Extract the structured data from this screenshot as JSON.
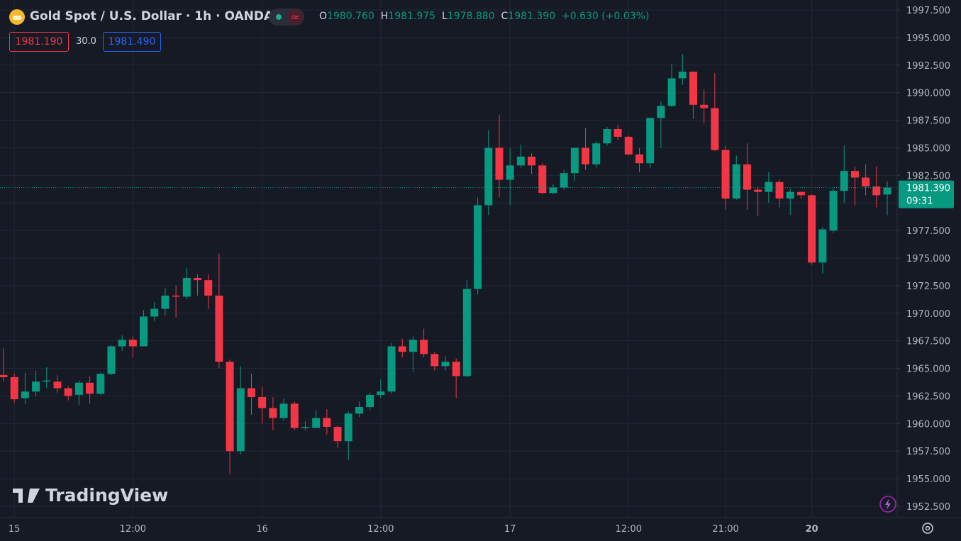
{
  "chart_data": {
    "type": "candlestick",
    "title": "Gold Spot / U.S. Dollar · 1h · OANDA",
    "legend": {
      "o_key": "O",
      "o": "1980.760",
      "h_key": "H",
      "h": "1981.975",
      "l_key": "L",
      "l": "1978.880",
      "c_key": "C",
      "c": "1981.390",
      "change": "+0.630 (+0.03%)"
    },
    "bid": "1981.190",
    "spread": "30.0",
    "ask": "1981.490",
    "last_price_label": "1981.390",
    "countdown": "09:31",
    "watermark": "TradingView",
    "up_color": "#089981",
    "down_color": "#f23645",
    "grid": true,
    "ylim": [
      1951.47,
      1998.4
    ],
    "yticks": [
      {
        "value": 1952.5,
        "label": "1952.500"
      },
      {
        "value": 1955,
        "label": "1955.000"
      },
      {
        "value": 1957.5,
        "label": "1957.500"
      },
      {
        "value": 1960,
        "label": "1960.000"
      },
      {
        "value": 1962.5,
        "label": "1962.500"
      },
      {
        "value": 1965,
        "label": "1965.000"
      },
      {
        "value": 1967.5,
        "label": "1967.500"
      },
      {
        "value": 1970,
        "label": "1970.000"
      },
      {
        "value": 1972.5,
        "label": "1972.500"
      },
      {
        "value": 1975,
        "label": "1975.000"
      },
      {
        "value": 1977.5,
        "label": "1977.500"
      },
      {
        "value": 1980,
        "label": "1980.000"
      },
      {
        "value": 1982.5,
        "label": "1982.500"
      },
      {
        "value": 1985,
        "label": "1985.000"
      },
      {
        "value": 1987.5,
        "label": "1987.500"
      },
      {
        "value": 1990,
        "label": "1990.000"
      },
      {
        "value": 1992.5,
        "label": "1992.500"
      },
      {
        "value": 1995,
        "label": "1995.000"
      },
      {
        "value": 1997.5,
        "label": "1997.500"
      }
    ],
    "categories": [
      null,
      "15",
      null,
      null,
      null,
      null,
      null,
      null,
      null,
      null,
      null,
      null,
      "12:00",
      null,
      null,
      null,
      null,
      null,
      null,
      null,
      null,
      null,
      null,
      null,
      "16",
      null,
      null,
      null,
      null,
      null,
      null,
      null,
      null,
      null,
      null,
      "12:00",
      null,
      null,
      null,
      null,
      null,
      null,
      null,
      null,
      null,
      null,
      null,
      "17",
      null,
      null,
      null,
      null,
      null,
      null,
      null,
      null,
      null,
      null,
      "12:00",
      null,
      null,
      null,
      null,
      null,
      null,
      null,
      null,
      "21:00",
      null,
      null,
      null,
      null,
      null,
      null,
      null,
      "20",
      null,
      null,
      null,
      null,
      null,
      null,
      null
    ],
    "open": [
      1964.4,
      1964.2,
      1962.3,
      1962.9,
      1963.8,
      1963.8,
      1963.2,
      1962.6,
      1963.7,
      1962.7,
      1964.5,
      1967.0,
      1967.6,
      1967.0,
      1969.7,
      1970.4,
      1971.6,
      1971.5,
      1973.2,
      1973.0,
      1971.6,
      1965.6,
      1957.5,
      1963.2,
      1962.4,
      1961.4,
      1960.5,
      1961.8,
      1959.6,
      1959.6,
      1960.5,
      1959.7,
      1958.4,
      1960.9,
      1961.5,
      1962.6,
      1962.9,
      1967.0,
      1966.5,
      1967.6,
      1966.3,
      1965.2,
      1965.6,
      1964.3,
      1972.2,
      1979.8,
      1985.0,
      1982.1,
      1983.4,
      1984.2,
      1983.4,
      1980.9,
      1981.4,
      1982.7,
      1985.0,
      1983.5,
      1985.4,
      1986.7,
      1986.0,
      1984.4,
      1983.6,
      1987.7,
      1988.8,
      1991.3,
      1991.9,
      1988.9,
      1988.6,
      1984.8,
      1980.4,
      1983.5,
      1981.2,
      1981.0,
      1981.9,
      1980.4,
      1981.0,
      1980.7,
      1974.6,
      1977.5,
      1981.1,
      1982.9,
      1982.3,
      1981.5,
      1980.76
    ],
    "high": [
      1966.8,
      1964.5,
      1964.6,
      1964.8,
      1965.1,
      1964.4,
      1963.4,
      1963.9,
      1964.3,
      1964.6,
      1967.1,
      1968.0,
      1967.9,
      1970.3,
      1971.0,
      1972.3,
      1972.5,
      1974.1,
      1973.5,
      1973.5,
      1975.4,
      1965.8,
      1965.2,
      1964.5,
      1963.3,
      1962.4,
      1962.3,
      1962.0,
      1960.2,
      1961.2,
      1961.3,
      1959.8,
      1961.1,
      1962.0,
      1962.8,
      1964.0,
      1967.3,
      1967.7,
      1967.9,
      1968.6,
      1966.5,
      1966.1,
      1965.9,
      1973.0,
      1980.5,
      1986.6,
      1988.0,
      1985.0,
      1985.3,
      1984.5,
      1983.6,
      1981.7,
      1983.0,
      1985.0,
      1986.8,
      1985.6,
      1986.9,
      1987.1,
      1986.1,
      1985.0,
      1987.7,
      1989.2,
      1992.6,
      1993.5,
      1991.9,
      1990.3,
      1991.8,
      1985.2,
      1984.3,
      1985.4,
      1981.5,
      1982.8,
      1982.1,
      1981.3,
      1981.0,
      1980.8,
      1977.8,
      1981.3,
      1985.2,
      1983.3,
      1983.5,
      1983.3,
      1981.975
    ],
    "low": [
      1963.8,
      1961.9,
      1961.8,
      1962.5,
      1963.2,
      1962.8,
      1962.1,
      1961.7,
      1961.8,
      1962.6,
      1964.4,
      1966.6,
      1966.0,
      1967.0,
      1969.3,
      1969.8,
      1969.6,
      1971.3,
      1971.6,
      1970.4,
      1965.0,
      1955.4,
      1957.2,
      1960.8,
      1960.0,
      1959.4,
      1960.3,
      1959.4,
      1959.4,
      1959.6,
      1959.0,
      1957.8,
      1956.7,
      1960.6,
      1961.2,
      1962.3,
      1962.7,
      1966.0,
      1964.7,
      1966.0,
      1964.8,
      1964.8,
      1962.3,
      1964.2,
      1971.7,
      1978.9,
      1980.5,
      1979.8,
      1983.2,
      1982.6,
      1980.8,
      1980.8,
      1981.2,
      1982.0,
      1983.0,
      1983.2,
      1985.2,
      1985.7,
      1984.3,
      1982.8,
      1983.2,
      1985.0,
      1988.7,
      1990.7,
      1987.6,
      1987.2,
      1984.7,
      1979.4,
      1980.3,
      1979.4,
      1978.8,
      1980.0,
      1979.6,
      1978.9,
      1980.4,
      1974.4,
      1973.6,
      1977.3,
      1980.0,
      1979.8,
      1980.7,
      1979.6,
      1978.88
    ],
    "close": [
      1964.2,
      1962.2,
      1962.9,
      1963.8,
      1963.9,
      1963.2,
      1962.5,
      1963.7,
      1962.7,
      1964.5,
      1967.0,
      1967.6,
      1967.0,
      1969.7,
      1970.4,
      1971.6,
      1971.5,
      1973.2,
      1973.0,
      1971.6,
      1965.6,
      1957.5,
      1963.2,
      1962.4,
      1961.4,
      1960.5,
      1961.8,
      1959.6,
      1959.7,
      1960.5,
      1959.7,
      1958.4,
      1960.9,
      1961.5,
      1962.6,
      1962.9,
      1967.0,
      1966.5,
      1967.6,
      1966.3,
      1965.2,
      1965.6,
      1964.3,
      1972.2,
      1979.8,
      1985.0,
      1982.1,
      1983.4,
      1984.2,
      1983.4,
      1980.9,
      1981.4,
      1982.7,
      1985.0,
      1983.5,
      1985.4,
      1986.7,
      1986.0,
      1984.4,
      1983.6,
      1987.7,
      1988.8,
      1991.3,
      1991.9,
      1988.9,
      1988.6,
      1984.8,
      1980.4,
      1983.5,
      1981.2,
      1981.0,
      1981.9,
      1980.4,
      1981.0,
      1980.7,
      1974.6,
      1977.6,
      1981.1,
      1982.9,
      1982.3,
      1981.5,
      1980.7,
      1981.39
    ]
  }
}
